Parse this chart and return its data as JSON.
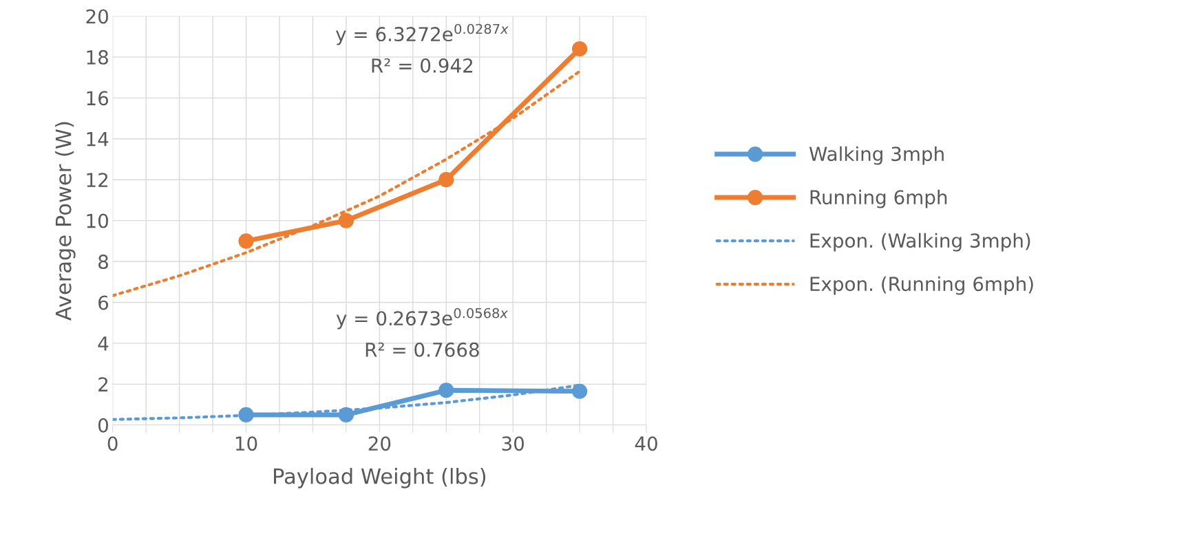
{
  "chart_data": {
    "type": "line",
    "xlabel": "Payload Weight (lbs)",
    "ylabel": "Average Power (W)",
    "xlim": [
      0,
      40
    ],
    "ylim": [
      0,
      20
    ],
    "xticks": [
      0,
      {
        "value": 2.5,
        "label": null
      },
      {
        "value": 5,
        "label": null
      },
      {
        "value": 7.5,
        "label": null
      },
      10,
      {
        "value": 12.5,
        "label": null
      },
      {
        "value": 15,
        "label": null
      },
      {
        "value": 17.5,
        "label": null
      },
      20,
      {
        "value": 22.5,
        "label": null
      },
      {
        "value": 25,
        "label": null
      },
      {
        "value": 27.5,
        "label": null
      },
      30,
      {
        "value": 32.5,
        "label": null
      },
      {
        "value": 35,
        "label": null
      },
      {
        "value": 37.5,
        "label": null
      },
      40
    ],
    "yticks": [
      0,
      2,
      4,
      6,
      8,
      10,
      12,
      14,
      16,
      18,
      20
    ],
    "grid": true,
    "legend": "right",
    "marker": "circle",
    "line_style": "solid",
    "series": [
      {
        "name": "Walking 3mph",
        "color": "#5b9bd5",
        "x": [
          10,
          17.5,
          25,
          35
        ],
        "values": [
          0.5,
          0.5,
          1.7,
          1.65
        ]
      },
      {
        "name": "Running 6mph",
        "color": "#ed7d31",
        "x": [
          10,
          17.5,
          25,
          35
        ],
        "values": [
          9,
          10,
          12,
          18.4
        ]
      },
      {
        "name": "Expon. (Walking 3mph)",
        "color": "#5b9bd5",
        "type": "line",
        "marker": "none",
        "line_style": "dotted",
        "x": [
          0,
          5,
          10,
          15,
          20,
          25,
          30,
          35
        ],
        "values": [
          0.27,
          0.35,
          0.47,
          0.63,
          0.83,
          1.1,
          1.47,
          1.95
        ]
      },
      {
        "name": "Expon. (Running 6mph)",
        "color": "#ed7d31",
        "type": "line",
        "marker": "none",
        "line_style": "dotted",
        "x": [
          0,
          5,
          10,
          15,
          20,
          25,
          30,
          35
        ],
        "values": [
          6.33,
          7.3,
          8.43,
          9.75,
          11.2,
          13.0,
          15.0,
          17.3
        ]
      }
    ],
    "annotations": [
      "y = 6.3272e$^{0.0287x}$",
      "R² = 0.942",
      "y = 0.2673e$^{0.0568x}$",
      "R² = 0.7668"
    ]
  }
}
